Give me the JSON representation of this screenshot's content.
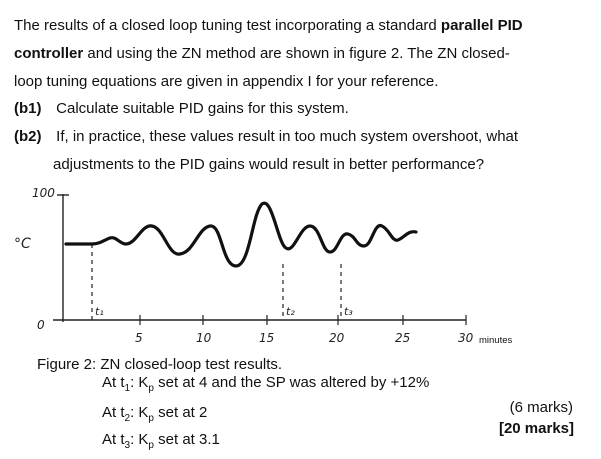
{
  "intro": {
    "line1_pre": "The results of a closed loop tuning test incorporating a standard ",
    "line1_bold": "parallel PID",
    "line2_bold": "controller",
    "line2_post": " and using the ZN method are shown in figure 2.  The ZN closed-",
    "line3": "loop tuning equations are given in appendix I for your reference."
  },
  "questions": {
    "b1_label": "(b1)",
    "b1_text": "Calculate suitable PID gains for this system.",
    "b2_label": "(b2)",
    "b2_text": "If, in practice, these values result in too much system overshoot, what",
    "b2_text_cont": "adjustments to the PID gains would result in better performance?"
  },
  "figure": {
    "y_top_label": "100",
    "y_unit_label": "°C",
    "y_zero_label": "0",
    "x_ticks": [
      "5",
      "10",
      "15",
      "20",
      "25",
      "30"
    ],
    "x_unit": "minutes",
    "markers": [
      "t₁",
      "t₂",
      "t₃"
    ],
    "caption": "Figure 2:  ZN closed-loop test results.",
    "notes": [
      {
        "pre": "At t",
        "sub": "1",
        "mid": ": K",
        "sub2": "p",
        "post": " set at 4 and the SP was altered by +12%"
      },
      {
        "pre": "At t",
        "sub": "2",
        "mid": ": K",
        "sub2": "p",
        "post": " set at 2"
      },
      {
        "pre": "At t",
        "sub": "3",
        "mid": ": K",
        "sub2": "p",
        "post": " set at 3.1"
      }
    ]
  },
  "marks": {
    "part": "(6 marks)",
    "total": "[20 marks]"
  }
}
